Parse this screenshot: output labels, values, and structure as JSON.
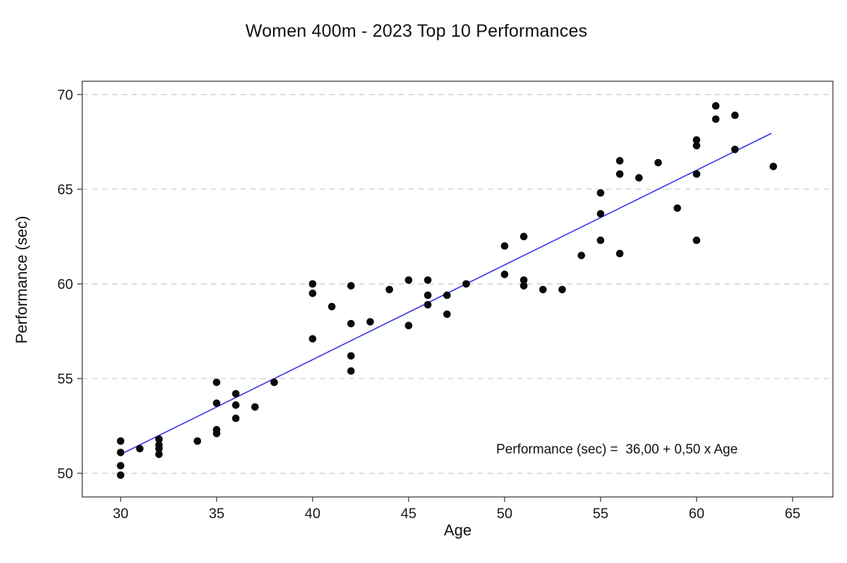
{
  "page": {
    "background": "#ffffff"
  },
  "chart_data": {
    "type": "scatter",
    "title": "Women 400m - 2023 Top 10 Performances",
    "xlabel": "Age",
    "ylabel": "Performance (sec)",
    "xlim": [
      28.0,
      67.1
    ],
    "ylim": [
      48.75,
      70.7
    ],
    "xticks": [
      30,
      35,
      40,
      45,
      50,
      55,
      60,
      65
    ],
    "yticks": [
      50,
      55,
      60,
      65,
      70
    ],
    "grid": "horizontal-dashed-at-yticks",
    "legend": "none",
    "point_color": "#0a0a0a",
    "point_radius": 5.3,
    "points": [
      [
        30,
        51.7
      ],
      [
        30,
        51.1
      ],
      [
        30,
        50.4
      ],
      [
        30,
        49.9
      ],
      [
        31,
        51.3
      ],
      [
        32,
        51.8
      ],
      [
        32,
        51.5
      ],
      [
        32,
        51.3
      ],
      [
        32,
        51.0
      ],
      [
        34,
        51.7
      ],
      [
        35,
        54.8
      ],
      [
        35,
        53.7
      ],
      [
        35,
        52.3
      ],
      [
        35,
        52.1
      ],
      [
        36,
        54.2
      ],
      [
        36,
        53.6
      ],
      [
        36,
        52.9
      ],
      [
        37,
        53.5
      ],
      [
        38,
        54.8
      ],
      [
        40,
        60.0
      ],
      [
        40,
        59.5
      ],
      [
        40,
        57.1
      ],
      [
        41,
        58.8
      ],
      [
        42,
        59.9
      ],
      [
        42,
        57.9
      ],
      [
        42,
        56.2
      ],
      [
        42,
        55.4
      ],
      [
        43,
        58.0
      ],
      [
        44,
        59.7
      ],
      [
        45,
        60.2
      ],
      [
        45,
        57.8
      ],
      [
        46,
        60.2
      ],
      [
        46,
        59.4
      ],
      [
        46,
        58.9
      ],
      [
        47,
        59.4
      ],
      [
        47,
        58.4
      ],
      [
        48,
        60.0
      ],
      [
        50,
        62.0
      ],
      [
        50,
        60.5
      ],
      [
        51,
        62.5
      ],
      [
        51,
        60.2
      ],
      [
        51,
        59.9
      ],
      [
        52,
        59.7
      ],
      [
        53,
        59.7
      ],
      [
        54,
        61.5
      ],
      [
        55,
        64.8
      ],
      [
        55,
        63.7
      ],
      [
        55,
        62.3
      ],
      [
        56,
        66.5
      ],
      [
        56,
        65.8
      ],
      [
        56,
        61.6
      ],
      [
        57,
        65.6
      ],
      [
        58,
        66.4
      ],
      [
        59,
        64.0
      ],
      [
        60,
        67.6
      ],
      [
        60,
        67.3
      ],
      [
        60,
        65.8
      ],
      [
        60,
        62.3
      ],
      [
        61,
        69.4
      ],
      [
        61,
        68.7
      ],
      [
        62,
        68.9
      ],
      [
        62,
        67.1
      ],
      [
        64,
        66.2
      ]
    ],
    "regression_line": {
      "equation_text": "Performance (sec) =  36,00 + 0,50 x Age",
      "intercept": 36.0,
      "slope": 0.5,
      "x_start": 30.2,
      "x_end": 63.9,
      "color": "#3333ee"
    }
  },
  "style_colors": {
    "axis": "#3f3f3f",
    "gridline": "#c9c9c9",
    "tick_label": "#1a1a1a"
  }
}
